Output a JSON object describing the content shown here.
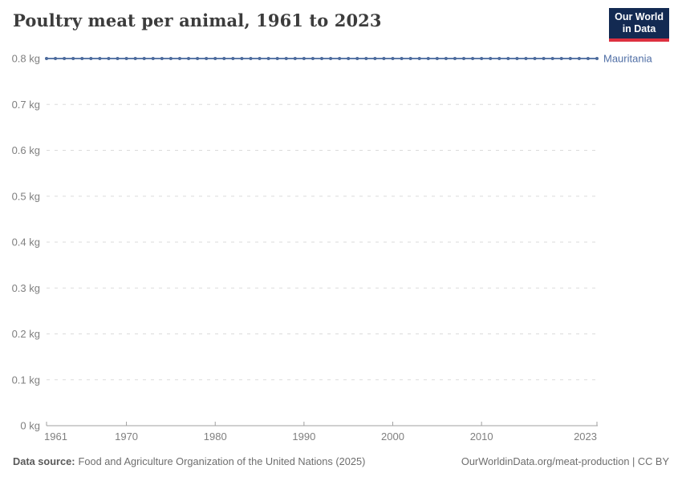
{
  "header": {
    "title": "Poultry meat per animal, 1961 to 2023",
    "logo": {
      "line1": "Our World",
      "line2": "in Data"
    }
  },
  "chart_data": {
    "type": "line",
    "title": "Poultry meat per animal, 1961 to 2023",
    "xlabel": "",
    "ylabel": "",
    "unit": "kg",
    "xlim": [
      1961,
      2023
    ],
    "ylim": [
      0,
      0.8
    ],
    "grid": "dashed-horizontal",
    "legend_position": "right-of-line-end",
    "x_ticks": [
      1961,
      1970,
      1980,
      1990,
      2000,
      2010,
      2023
    ],
    "y_tick_values": [
      0,
      0.1,
      0.2,
      0.3,
      0.4,
      0.5,
      0.6,
      0.7,
      0.8
    ],
    "y_tick_labels": [
      "0 kg",
      "0.1 kg",
      "0.2 kg",
      "0.3 kg",
      "0.4 kg",
      "0.5 kg",
      "0.6 kg",
      "0.7 kg",
      "0.8 kg"
    ],
    "series": [
      {
        "name": "Mauritania",
        "x": [
          1961,
          1962,
          1963,
          1964,
          1965,
          1966,
          1967,
          1968,
          1969,
          1970,
          1971,
          1972,
          1973,
          1974,
          1975,
          1976,
          1977,
          1978,
          1979,
          1980,
          1981,
          1982,
          1983,
          1984,
          1985,
          1986,
          1987,
          1988,
          1989,
          1990,
          1991,
          1992,
          1993,
          1994,
          1995,
          1996,
          1997,
          1998,
          1999,
          2000,
          2001,
          2002,
          2003,
          2004,
          2005,
          2006,
          2007,
          2008,
          2009,
          2010,
          2011,
          2012,
          2013,
          2014,
          2015,
          2016,
          2017,
          2018,
          2019,
          2020,
          2021,
          2022,
          2023
        ],
        "values": [
          0.8,
          0.8,
          0.8,
          0.8,
          0.8,
          0.8,
          0.8,
          0.8,
          0.8,
          0.8,
          0.8,
          0.8,
          0.8,
          0.8,
          0.8,
          0.8,
          0.8,
          0.8,
          0.8,
          0.8,
          0.8,
          0.8,
          0.8,
          0.8,
          0.8,
          0.8,
          0.8,
          0.8,
          0.8,
          0.8,
          0.8,
          0.8,
          0.8,
          0.8,
          0.8,
          0.8,
          0.8,
          0.8,
          0.8,
          0.8,
          0.8,
          0.8,
          0.8,
          0.8,
          0.8,
          0.8,
          0.8,
          0.8,
          0.8,
          0.8,
          0.8,
          0.8,
          0.8,
          0.8,
          0.8,
          0.8,
          0.8,
          0.8,
          0.8,
          0.8,
          0.8,
          0.8,
          0.8
        ]
      }
    ]
  },
  "colors": {
    "series_line": "#5c7aa9",
    "series_marker": "#4c6a9c",
    "series_label": "#4f6ea5",
    "grid": "#dbdbdb",
    "axis": "#a1a1a1",
    "tick_text": "#7f7f7f",
    "title_text": "#3c3c3c",
    "logo_bg": "#132a52",
    "logo_accent": "#dd303f"
  },
  "footer": {
    "source_label": "Data source:",
    "source_text": "Food and Agriculture Organization of the United Nations (2025)",
    "right_text": "OurWorldinData.org/meat-production | CC BY"
  }
}
